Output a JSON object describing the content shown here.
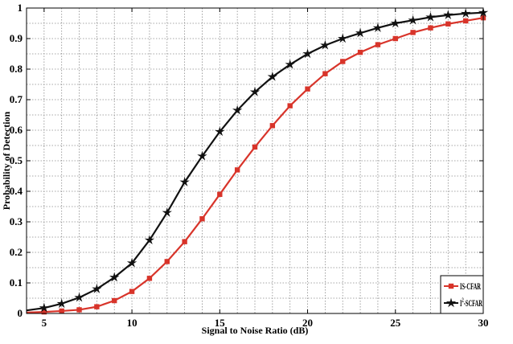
{
  "chart_data": {
    "type": "line",
    "title": "",
    "xlabel": "Signal to Noise Ratio (dB)",
    "ylabel": "Probability of Detection",
    "xlim": [
      4,
      30
    ],
    "ylim": [
      0,
      1
    ],
    "xticks": [
      5,
      10,
      15,
      20,
      25,
      30
    ],
    "yticks": [
      0,
      0.1,
      0.2,
      0.3,
      0.4,
      0.5,
      0.6,
      0.7,
      0.8,
      0.9,
      1
    ],
    "xtick_labels": [
      "5",
      "10",
      "15",
      "20",
      "25",
      "30"
    ],
    "ytick_labels": [
      "0",
      "0.1",
      "0.2",
      "0.3",
      "0.4",
      "0.5",
      "0.6",
      "0.7",
      "0.8",
      "0.9",
      "1"
    ],
    "grid": true,
    "grid_style": "dotted",
    "legend_position": "bottom-right",
    "x": [
      4,
      5,
      6,
      7,
      8,
      9,
      10,
      11,
      12,
      13,
      14,
      15,
      16,
      17,
      18,
      19,
      20,
      21,
      22,
      23,
      24,
      25,
      26,
      27,
      28,
      29,
      30
    ],
    "series": [
      {
        "name": "IS-CFAR",
        "color": "#d8342a",
        "marker": "square",
        "values": [
          0.003,
          0.005,
          0.008,
          0.012,
          0.022,
          0.042,
          0.072,
          0.115,
          0.17,
          0.235,
          0.31,
          0.39,
          0.47,
          0.545,
          0.615,
          0.68,
          0.735,
          0.785,
          0.825,
          0.855,
          0.88,
          0.9,
          0.92,
          0.935,
          0.948,
          0.958,
          0.968
        ]
      },
      {
        "name": "I²-SCFAR",
        "name_main": "I",
        "name_sup": "2",
        "name_rest": "-SCFAR",
        "color": "#111111",
        "marker": "star",
        "values": [
          0.01,
          0.018,
          0.032,
          0.052,
          0.08,
          0.118,
          0.165,
          0.24,
          0.33,
          0.43,
          0.515,
          0.595,
          0.665,
          0.725,
          0.775,
          0.815,
          0.85,
          0.878,
          0.9,
          0.918,
          0.935,
          0.95,
          0.96,
          0.97,
          0.977,
          0.982,
          0.985
        ]
      }
    ]
  }
}
